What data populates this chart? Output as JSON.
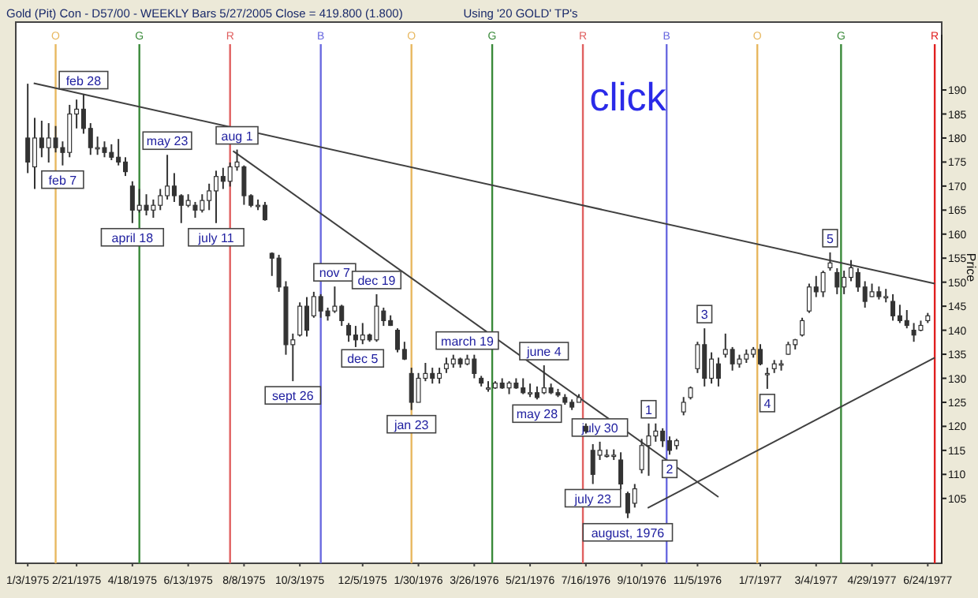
{
  "chart_data": {
    "type": "candlestick",
    "title": "Gold (Pit) Con - D57/00 - WEEKLY Bars 5/27/2005 Close = 419.800 (1.800)",
    "subtitle": "Using '20 GOLD' TP's",
    "ylabel": "Price",
    "color": "#333333",
    "x": [
      "1975-01-03",
      "1975-01-10",
      "1975-01-17",
      "1975-01-24",
      "1975-01-31",
      "1975-02-07",
      "1975-02-14",
      "1975-02-21",
      "1975-02-28",
      "1975-03-07",
      "1975-03-14",
      "1975-03-21",
      "1975-03-28",
      "1975-04-04",
      "1975-04-11",
      "1975-04-18",
      "1975-04-25",
      "1975-05-02",
      "1975-05-09",
      "1975-05-16",
      "1975-05-23",
      "1975-05-30",
      "1975-06-06",
      "1975-06-13",
      "1975-06-20",
      "1975-06-27",
      "1975-07-04",
      "1975-07-11",
      "1975-07-18",
      "1975-07-25",
      "1975-08-01",
      "1975-08-08",
      "1975-08-15",
      "1975-08-22",
      "1975-08-29",
      "1975-09-05",
      "1975-09-12",
      "1975-09-19",
      "1975-09-26",
      "1975-10-03",
      "1975-10-10",
      "1975-10-17",
      "1975-10-24",
      "1975-10-31",
      "1975-11-07",
      "1975-11-14",
      "1975-11-21",
      "1975-11-28",
      "1975-12-05",
      "1975-12-12",
      "1975-12-19",
      "1975-12-26",
      "1976-01-02",
      "1976-01-09",
      "1976-01-16",
      "1976-01-23",
      "1976-01-30",
      "1976-02-06",
      "1976-02-13",
      "1976-02-20",
      "1976-02-27",
      "1976-03-05",
      "1976-03-12",
      "1976-03-19",
      "1976-03-26",
      "1976-04-02",
      "1976-04-09",
      "1976-04-16",
      "1976-04-23",
      "1976-04-30",
      "1976-05-07",
      "1976-05-14",
      "1976-05-21",
      "1976-05-28",
      "1976-06-04",
      "1976-06-11",
      "1976-06-18",
      "1976-06-25",
      "1976-07-02",
      "1976-07-09",
      "1976-07-16",
      "1976-07-23",
      "1976-07-30",
      "1976-08-06",
      "1976-08-13",
      "1976-08-20",
      "1976-08-27",
      "1976-09-03",
      "1976-09-10",
      "1976-09-17",
      "1976-09-24",
      "1976-10-01",
      "1976-10-08",
      "1976-10-15",
      "1976-10-22",
      "1976-10-29",
      "1976-11-05",
      "1976-11-12",
      "1976-11-19",
      "1976-11-26",
      "1976-12-03",
      "1976-12-10",
      "1976-12-17",
      "1976-12-24",
      "1976-12-31",
      "1977-01-07",
      "1977-01-14",
      "1977-01-21",
      "1977-01-28",
      "1977-02-04",
      "1977-02-11",
      "1977-02-18",
      "1977-02-25",
      "1977-03-04",
      "1977-03-11",
      "1977-03-18",
      "1977-03-25",
      "1977-04-01",
      "1977-04-08",
      "1977-04-15",
      "1977-04-22",
      "1977-04-29",
      "1977-05-06",
      "1977-05-13",
      "1977-05-20",
      "1977-05-27",
      "1977-06-03",
      "1977-06-10",
      "1977-06-17",
      "1977-06-24"
    ],
    "ohlc": [
      [
        180,
        191.3,
        172.7,
        175
      ],
      [
        174,
        184.2,
        169.4,
        180
      ],
      [
        180,
        183.6,
        176,
        178
      ],
      [
        178,
        183.1,
        174.9,
        180
      ],
      [
        180,
        182.5,
        177,
        178
      ],
      [
        178,
        179.3,
        174.3,
        177
      ],
      [
        177,
        186.9,
        176,
        185
      ],
      [
        185,
        188,
        182,
        186
      ],
      [
        186,
        189.1,
        180.9,
        182
      ],
      [
        182,
        183.1,
        176.5,
        178
      ],
      [
        178,
        180.3,
        176.5,
        178
      ],
      [
        178,
        179.3,
        176,
        177
      ],
      [
        177,
        178.7,
        175.4,
        176
      ],
      [
        176,
        179.8,
        174.3,
        175
      ],
      [
        175,
        176,
        172.1,
        173
      ],
      [
        170,
        171,
        162.3,
        165
      ],
      [
        165,
        169.4,
        164.5,
        166
      ],
      [
        166,
        168.3,
        163.9,
        165
      ],
      [
        165,
        167.2,
        163.4,
        166
      ],
      [
        166,
        169.4,
        165,
        168
      ],
      [
        168,
        176.5,
        167.2,
        170
      ],
      [
        170,
        172.7,
        166.7,
        168
      ],
      [
        168,
        168.3,
        162.3,
        166
      ],
      [
        166,
        168.3,
        165.6,
        167
      ],
      [
        166,
        166.7,
        163.4,
        165
      ],
      [
        165,
        168.3,
        164.5,
        167
      ],
      [
        167,
        170.5,
        165,
        169
      ],
      [
        169,
        173.2,
        162.3,
        172
      ],
      [
        172,
        173.8,
        169.4,
        171
      ],
      [
        171,
        174.9,
        169.9,
        174
      ],
      [
        174,
        177.6,
        173.2,
        175
      ],
      [
        174,
        174.3,
        166.1,
        168
      ],
      [
        168,
        168.3,
        165.6,
        166
      ],
      [
        166,
        167.2,
        165,
        166
      ],
      [
        166,
        166.7,
        162.8,
        163
      ],
      [
        156,
        156.2,
        151.3,
        155
      ],
      [
        155,
        155.7,
        148,
        149
      ],
      [
        149,
        150.2,
        134.9,
        137
      ],
      [
        137,
        139.3,
        129.4,
        138
      ],
      [
        139,
        145.8,
        138.7,
        145
      ],
      [
        145,
        146.9,
        138.7,
        140
      ],
      [
        143,
        148,
        142.6,
        147
      ],
      [
        147,
        147.5,
        142.6,
        144
      ],
      [
        144,
        144.7,
        142,
        143
      ],
      [
        144,
        149.1,
        143.6,
        145
      ],
      [
        145,
        145.3,
        140.9,
        142
      ],
      [
        141,
        141.5,
        137.6,
        139
      ],
      [
        139,
        140.9,
        136.5,
        138
      ],
      [
        138,
        141.5,
        137.1,
        139
      ],
      [
        139,
        139.3,
        137.6,
        138
      ],
      [
        138,
        147.5,
        137.6,
        145
      ],
      [
        144,
        144.7,
        140.9,
        142
      ],
      [
        142,
        143.1,
        140.9,
        141
      ],
      [
        140,
        140.4,
        135.4,
        136
      ],
      [
        136,
        137.6,
        133.8,
        134
      ],
      [
        131,
        132.2,
        123.4,
        125
      ],
      [
        125,
        131.1,
        125,
        130
      ],
      [
        130,
        133.2,
        129.4,
        131
      ],
      [
        131,
        132.2,
        128.9,
        130
      ],
      [
        130,
        132.2,
        128.9,
        131
      ],
      [
        132,
        134.3,
        131.1,
        133
      ],
      [
        133,
        134.9,
        132.2,
        134
      ],
      [
        134,
        134.3,
        132.2,
        133
      ],
      [
        133,
        134.9,
        132.7,
        134
      ],
      [
        134,
        134.9,
        130,
        131
      ],
      [
        130,
        130.5,
        128.3,
        129
      ],
      [
        128,
        129.4,
        127.2,
        128
      ],
      [
        128,
        129.4,
        127.8,
        129
      ],
      [
        129,
        130,
        127.8,
        128
      ],
      [
        128,
        129.4,
        126.7,
        129
      ],
      [
        129,
        130,
        127.8,
        128
      ],
      [
        128,
        130,
        126.7,
        127
      ],
      [
        127,
        128.9,
        126.1,
        127
      ],
      [
        127,
        128.3,
        125.6,
        126
      ],
      [
        127,
        132.7,
        126.7,
        128
      ],
      [
        128,
        128.9,
        126.7,
        127
      ],
      [
        127,
        127.8,
        126.1,
        126.5
      ],
      [
        126,
        126.7,
        124.5,
        125
      ],
      [
        125,
        125.6,
        123.4,
        124
      ],
      [
        125,
        126.7,
        125,
        126
      ],
      [
        120,
        120.6,
        118.5,
        119
      ],
      [
        115,
        116.3,
        108,
        110
      ],
      [
        114,
        116.8,
        113,
        115
      ],
      [
        114,
        115.2,
        113.5,
        114
      ],
      [
        114,
        115.2,
        113,
        114
      ],
      [
        113,
        114.6,
        106.9,
        108
      ],
      [
        106,
        106.4,
        100.9,
        102
      ],
      [
        104,
        108,
        103.1,
        107
      ],
      [
        111,
        117.4,
        110.2,
        116
      ],
      [
        116,
        120.6,
        109.7,
        118
      ],
      [
        118,
        120.6,
        116.8,
        119
      ],
      [
        119,
        119.6,
        115.7,
        117
      ],
      [
        117,
        117.9,
        114.1,
        115
      ],
      [
        116,
        117.4,
        115.2,
        117
      ],
      [
        123,
        126.1,
        122.3,
        125
      ],
      [
        126,
        128.3,
        125.6,
        128
      ],
      [
        132,
        137.6,
        131.1,
        137
      ],
      [
        137,
        140.4,
        128.3,
        130
      ],
      [
        130,
        135.4,
        128.9,
        134
      ],
      [
        133,
        134.3,
        128.3,
        130
      ],
      [
        135,
        139.3,
        134.3,
        136
      ],
      [
        136,
        136.5,
        131.6,
        133
      ],
      [
        133,
        134.9,
        132.2,
        134
      ],
      [
        134,
        136,
        133.2,
        135
      ],
      [
        135,
        136.5,
        134.3,
        136
      ],
      [
        136,
        137.1,
        132.7,
        133
      ],
      [
        131,
        132.2,
        127.8,
        131
      ],
      [
        132,
        133.8,
        131.1,
        133
      ],
      [
        133,
        133.8,
        131.6,
        133
      ],
      [
        135,
        137.6,
        134.9,
        137
      ],
      [
        137,
        138.2,
        136,
        138
      ],
      [
        139,
        142.6,
        138.7,
        142
      ],
      [
        144,
        149.7,
        143.6,
        149
      ],
      [
        149,
        151.3,
        146.9,
        148
      ],
      [
        148,
        152.4,
        146.9,
        152
      ],
      [
        153,
        156.2,
        152.4,
        154
      ],
      [
        152,
        152.9,
        147.5,
        149
      ],
      [
        149,
        152.4,
        147.5,
        151
      ],
      [
        151,
        154.6,
        150.2,
        153
      ],
      [
        152,
        152.9,
        148,
        149
      ],
      [
        149,
        150.2,
        144.7,
        146
      ],
      [
        147,
        149.7,
        146.9,
        148
      ],
      [
        148,
        149.1,
        146.4,
        147
      ],
      [
        147,
        148.6,
        145.8,
        147
      ],
      [
        146,
        147.5,
        142,
        143
      ],
      [
        143,
        145.3,
        141.5,
        142
      ],
      [
        142,
        144.2,
        140.4,
        141
      ],
      [
        140,
        141.5,
        137.6,
        139
      ],
      [
        140,
        142,
        139.8,
        141
      ],
      [
        142,
        143.6,
        141.5,
        143
      ]
    ],
    "series": [
      {
        "type": "line",
        "color": "#404040",
        "x": [
          "1975-01-09",
          "1977-07-01"
        ],
        "values": [
          191.4,
          149.7
        ]
      },
      {
        "type": "line",
        "color": "#404040",
        "x": [
          "1975-07-28",
          "1976-11-26"
        ],
        "values": [
          177.3,
          105.3
        ]
      },
      {
        "type": "line",
        "color": "#404040",
        "x": [
          "1976-09-16",
          "1977-07-01"
        ],
        "values": [
          103.0,
          134.3
        ]
      }
    ],
    "xlim": [
      "1974-12-22",
      "1977-07-08"
    ],
    "xticks": [
      {
        "value": "1975-01-03",
        "label": "1/3/1975"
      },
      {
        "value": "1975-02-21",
        "label": "2/21/1975"
      },
      {
        "value": "1975-04-18",
        "label": "4/18/1975"
      },
      {
        "value": "1975-06-13",
        "label": "6/13/1975"
      },
      {
        "value": "1975-08-08",
        "label": "8/8/1975"
      },
      {
        "value": "1975-10-03",
        "label": "10/3/1975"
      },
      {
        "value": "1975-12-05",
        "label": "12/5/1975"
      },
      {
        "value": "1976-01-30",
        "label": "1/30/1976"
      },
      {
        "value": "1976-03-26",
        "label": "3/26/1976"
      },
      {
        "value": "1976-05-21",
        "label": "5/21/1976"
      },
      {
        "value": "1976-07-16",
        "label": "7/16/1976"
      },
      {
        "value": "1976-09-10",
        "label": "9/10/1976"
      },
      {
        "value": "1976-11-05",
        "label": "11/5/1976"
      },
      {
        "value": "1977-01-07",
        "label": "1/7/1977"
      },
      {
        "value": "1977-03-04",
        "label": "3/4/1977"
      },
      {
        "value": "1977-04-29",
        "label": "4/29/1977"
      },
      {
        "value": "1977-06-24",
        "label": "6/24/1977"
      }
    ],
    "ylim": [
      91.5,
      201.5
    ],
    "yticks": [
      105,
      110,
      115,
      120,
      125,
      130,
      135,
      140,
      145,
      150,
      155,
      160,
      165,
      170,
      175,
      180,
      185,
      190
    ],
    "ref_lines": [
      {
        "axis": "x",
        "value": "1975-01-31",
        "label": "O",
        "color": "#e8b860"
      },
      {
        "axis": "x",
        "value": "1975-04-25",
        "label": "G",
        "color": "#3a8a3a"
      },
      {
        "axis": "x",
        "value": "1975-07-25",
        "label": "R",
        "color": "#e06060"
      },
      {
        "axis": "x",
        "value": "1975-10-24",
        "label": "B",
        "color": "#6a6ae0"
      },
      {
        "axis": "x",
        "value": "1976-01-23",
        "label": "O",
        "color": "#e8b860"
      },
      {
        "axis": "x",
        "value": "1976-04-13",
        "label": "G",
        "color": "#3a8a3a"
      },
      {
        "axis": "x",
        "value": "1976-07-13",
        "label": "R",
        "color": "#e06060"
      },
      {
        "axis": "x",
        "value": "1976-10-05",
        "label": "B",
        "color": "#6a6ae0"
      },
      {
        "axis": "x",
        "value": "1977-01-04",
        "label": "O",
        "color": "#e8b860"
      },
      {
        "axis": "x",
        "value": "1977-03-29",
        "label": "G",
        "color": "#3a8a3a"
      },
      {
        "axis": "x",
        "value": "1977-07-01",
        "label": "R",
        "color": "#e02020"
      }
    ],
    "annotations": [
      "click",
      {
        "text": "feb 28",
        "x": "1975-02-28",
        "y": 189.1
      },
      {
        "text": "feb 7",
        "x": "1975-02-07",
        "y": 174.3
      },
      {
        "text": "may 23",
        "x": "1975-05-23",
        "y": 176.5
      },
      {
        "text": "aug 1",
        "x": "1975-08-01",
        "y": 177.6
      },
      {
        "text": "april 18",
        "x": "1975-04-18",
        "y": 162.3
      },
      {
        "text": "july 11",
        "x": "1975-07-11",
        "y": 162.3
      },
      {
        "text": "nov 7",
        "x": "1975-11-07",
        "y": 149.1
      },
      {
        "text": "dec 19",
        "x": "1975-12-19",
        "y": 147.5
      },
      {
        "text": "dec 5",
        "x": "1975-12-05",
        "y": 137.1
      },
      {
        "text": "sept 26",
        "x": "1975-09-26",
        "y": 129.4
      },
      {
        "text": "jan 23",
        "x": "1976-01-23",
        "y": 123.4
      },
      {
        "text": "march 19",
        "x": "1976-03-19",
        "y": 134.9
      },
      {
        "text": "june 4",
        "x": "1976-06-04",
        "y": 132.7
      },
      {
        "text": "may 28",
        "x": "1976-05-28",
        "y": 125.6
      },
      {
        "text": "july 30",
        "x": "1976-07-30",
        "y": 116.8
      },
      {
        "text": "july 23",
        "x": "1976-07-23",
        "y": 108
      },
      {
        "text": "august, 1976",
        "x": "1976-08-27",
        "y": 100.9
      },
      {
        "text": "1",
        "x": "1976-09-17",
        "y": 120.6
      },
      {
        "text": "2",
        "x": "1976-10-08",
        "y": 114.1
      },
      {
        "text": "3",
        "x": "1976-11-12",
        "y": 140.4
      },
      {
        "text": "4",
        "x": "1977-01-14",
        "y": 127.8
      },
      {
        "text": "5",
        "x": "1977-03-18",
        "y": 156.2
      }
    ]
  }
}
